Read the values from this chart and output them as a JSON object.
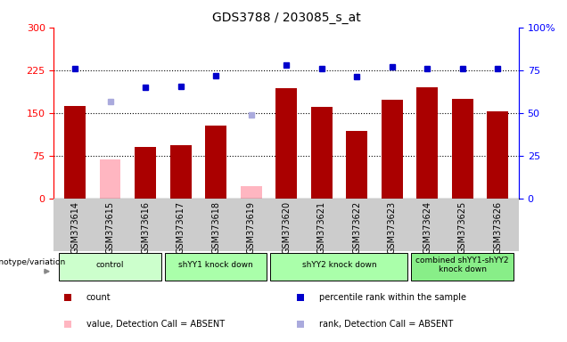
{
  "title": "GDS3788 / 203085_s_at",
  "samples": [
    "GSM373614",
    "GSM373615",
    "GSM373616",
    "GSM373617",
    "GSM373618",
    "GSM373619",
    "GSM373620",
    "GSM373621",
    "GSM373622",
    "GSM373623",
    "GSM373624",
    "GSM373625",
    "GSM373626"
  ],
  "count_values": [
    162,
    null,
    90,
    93,
    127,
    null,
    193,
    160,
    118,
    173,
    195,
    175,
    152
  ],
  "count_absent": [
    null,
    68,
    null,
    null,
    null,
    22,
    null,
    null,
    null,
    null,
    null,
    null,
    null
  ],
  "percentile_values": [
    228,
    null,
    195,
    196,
    215,
    null,
    234,
    228,
    213,
    231,
    228,
    228,
    227
  ],
  "percentile_absent": [
    null,
    170,
    null,
    null,
    null,
    146,
    null,
    null,
    null,
    null,
    null,
    null,
    null
  ],
  "ylim_left": [
    0,
    300
  ],
  "ylim_right": [
    0,
    100
  ],
  "yticks_left": [
    0,
    75,
    150,
    225,
    300
  ],
  "yticks_right": [
    0,
    25,
    50,
    75,
    100
  ],
  "hlines": [
    75,
    150,
    225
  ],
  "bar_color": "#aa0000",
  "absent_bar_color": "#ffb6c1",
  "dot_color": "#0000cc",
  "absent_dot_color": "#aaaadd",
  "bg_color": "#ffffff",
  "tick_bg_color": "#cccccc",
  "group_data": [
    {
      "label": "control",
      "start": 0,
      "end": 2,
      "color": "#ccffcc"
    },
    {
      "label": "shYY1 knock down",
      "start": 3,
      "end": 5,
      "color": "#aaffaa"
    },
    {
      "label": "shYY2 knock down",
      "start": 6,
      "end": 9,
      "color": "#aaffaa"
    },
    {
      "label": "combined shYY1-shYY2\nknock down",
      "start": 10,
      "end": 12,
      "color": "#88ee88"
    }
  ],
  "legend_items": [
    {
      "color": "#aa0000",
      "marker": "s",
      "label": "count"
    },
    {
      "color": "#0000cc",
      "marker": "s",
      "label": "percentile rank within the sample"
    },
    {
      "color": "#ffb6c1",
      "marker": "s",
      "label": "value, Detection Call = ABSENT"
    },
    {
      "color": "#aaaadd",
      "marker": "s",
      "label": "rank, Detection Call = ABSENT"
    }
  ]
}
